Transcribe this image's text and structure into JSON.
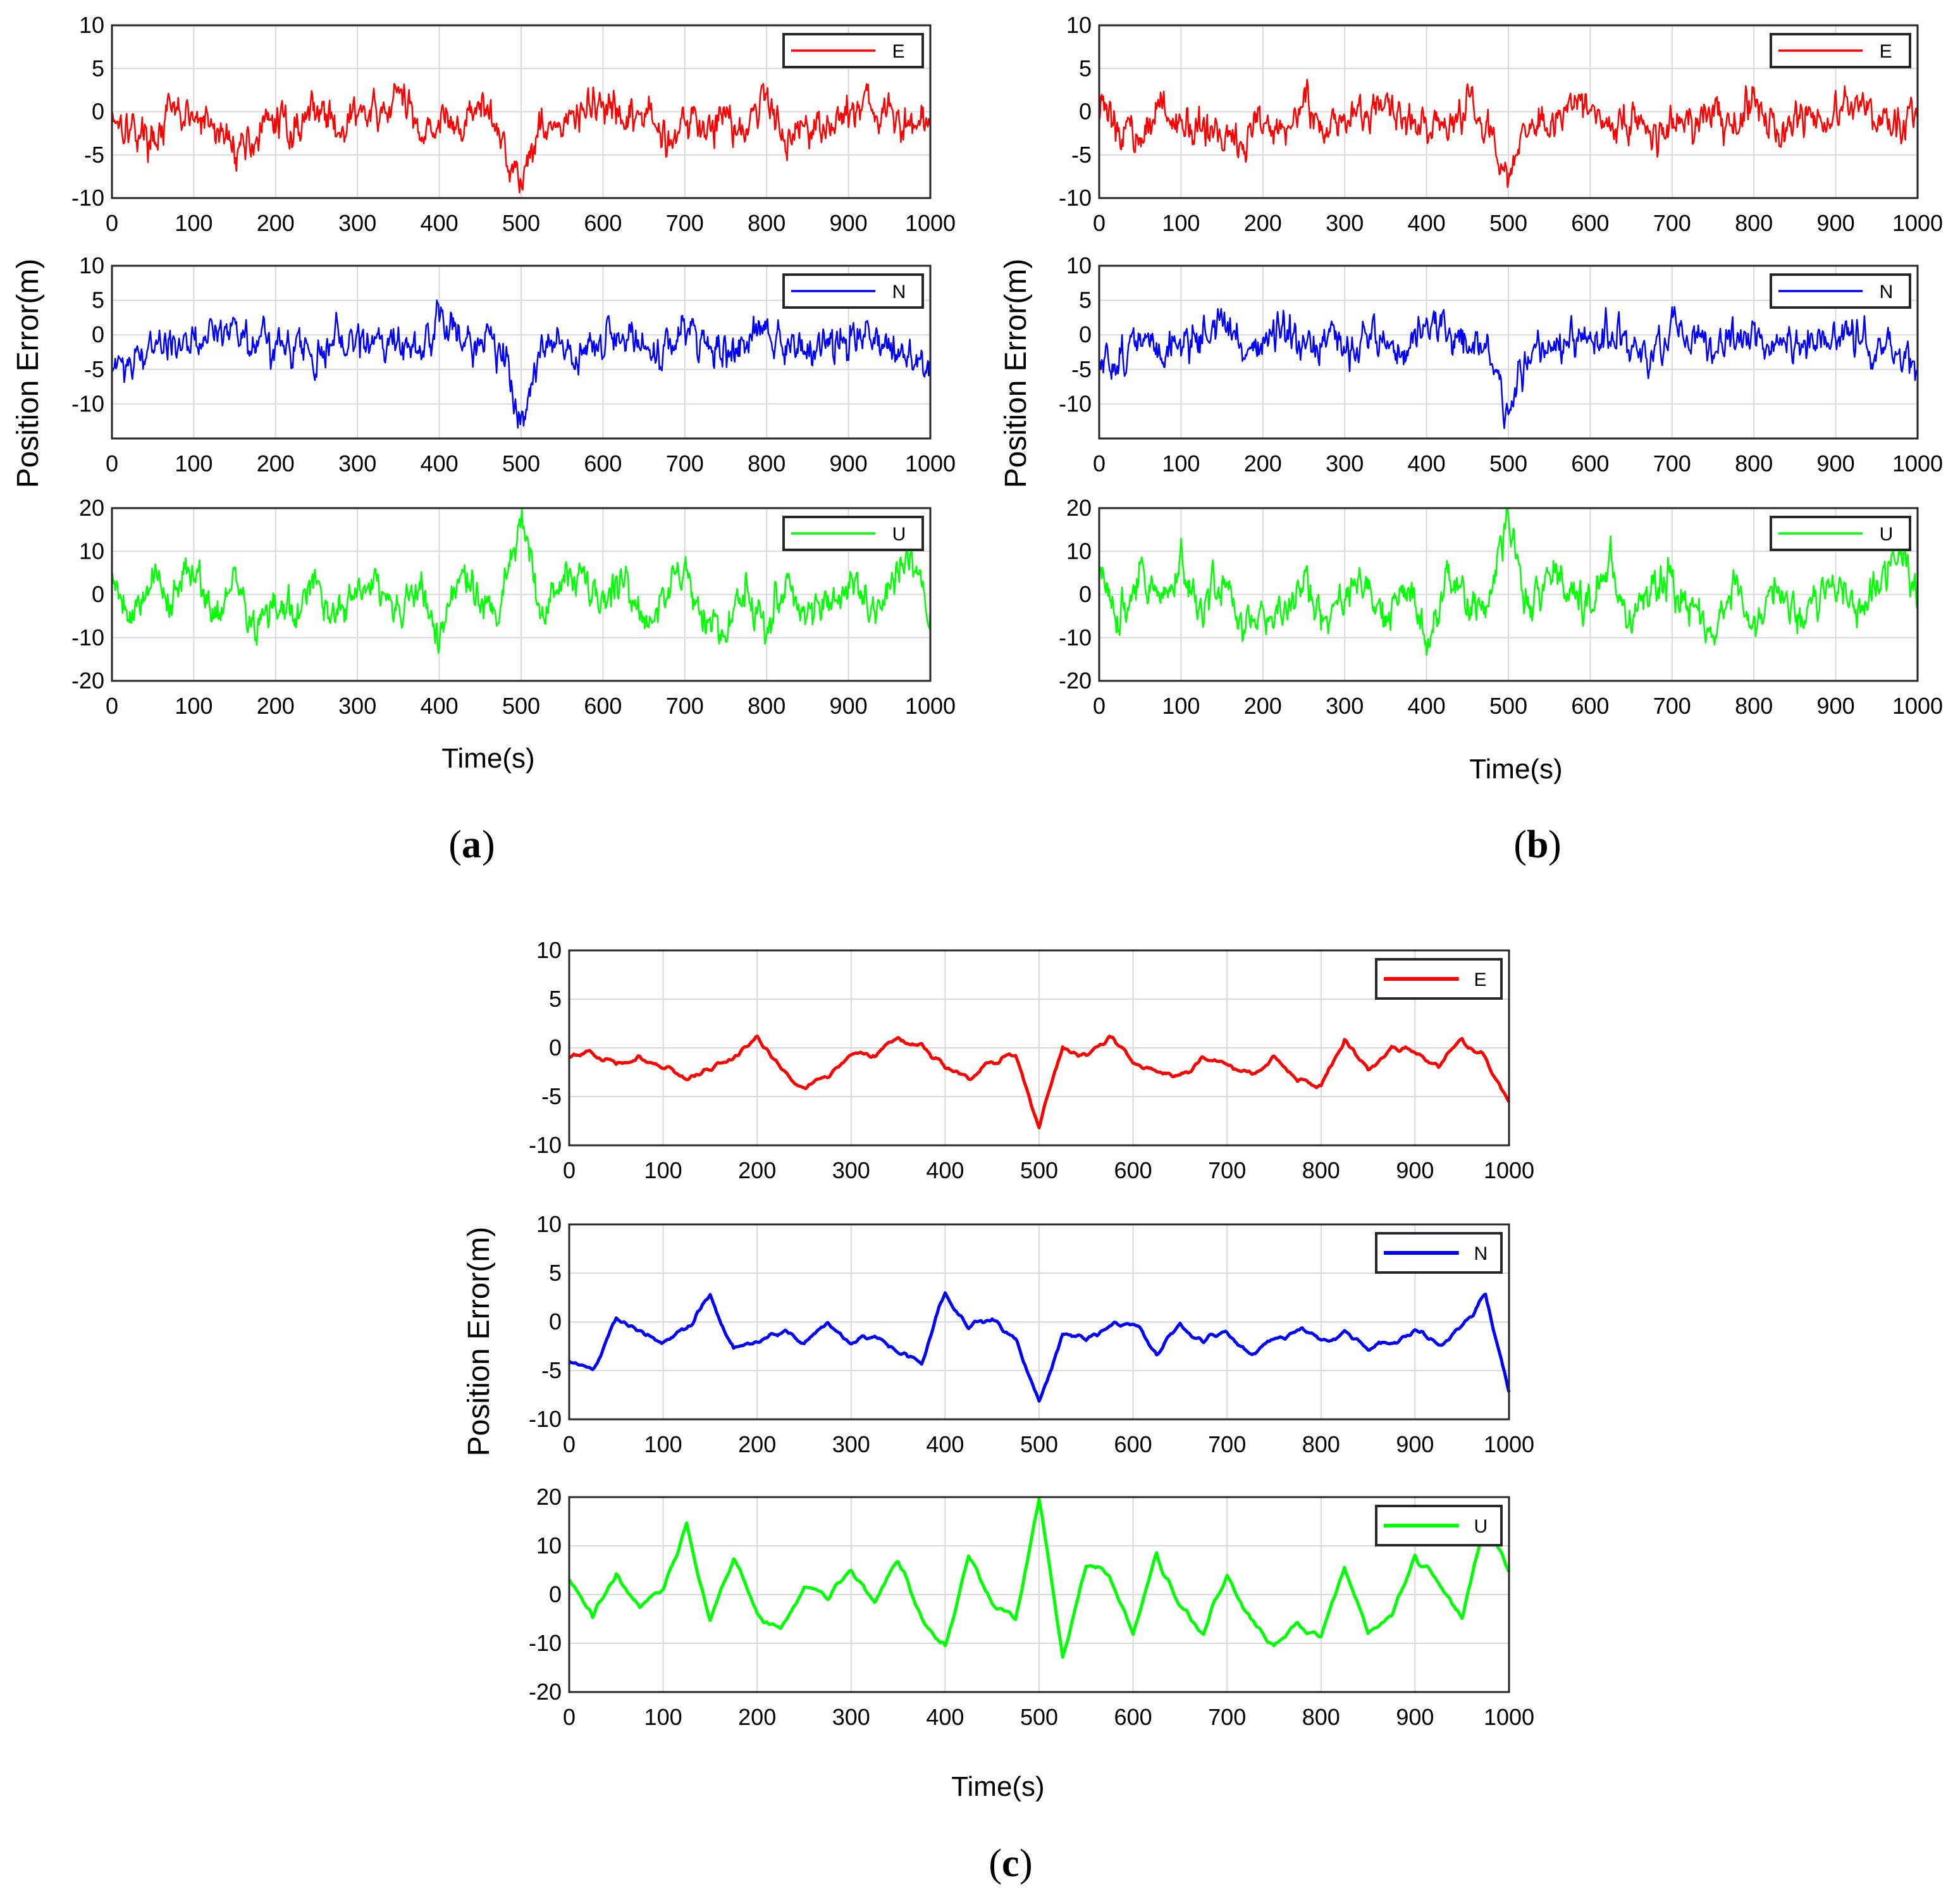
{
  "figure": {
    "panels": [
      {
        "caption_letter": "a",
        "ylabel": "Position Error(m)",
        "xlabel": "Time(s)",
        "subplots": [
          {
            "type": "line",
            "series_name": "E",
            "color": "#ff0000",
            "ylim": [
              -10,
              10
            ],
            "yticks": [
              -10,
              -5,
              0,
              5,
              10
            ],
            "xlim": [
              0,
              1000
            ],
            "xticks": [
              0,
              100,
              200,
              300,
              400,
              500,
              600,
              700,
              800,
              900,
              1000
            ]
          },
          {
            "type": "line",
            "series_name": "N",
            "color": "#0000ff",
            "ylim": [
              -15,
              10
            ],
            "yticks": [
              -10,
              -5,
              0,
              5,
              10
            ],
            "xlim": [
              0,
              1000
            ],
            "xticks": [
              0,
              100,
              200,
              300,
              400,
              500,
              600,
              700,
              800,
              900,
              1000
            ]
          },
          {
            "type": "line",
            "series_name": "U",
            "color": "#00ff00",
            "ylim": [
              -20,
              20
            ],
            "yticks": [
              -20,
              -10,
              0,
              10,
              20
            ],
            "xlim": [
              0,
              1000
            ],
            "xticks": [
              0,
              100,
              200,
              300,
              400,
              500,
              600,
              700,
              800,
              900,
              1000
            ]
          }
        ]
      },
      {
        "caption_letter": "b",
        "ylabel": "Position Error(m)",
        "xlabel": "Time(s)",
        "subplots": [
          {
            "type": "line",
            "series_name": "E",
            "color": "#ff0000",
            "ylim": [
              -10,
              10
            ],
            "yticks": [
              -10,
              -5,
              0,
              5,
              10
            ],
            "xlim": [
              0,
              1000
            ],
            "xticks": [
              0,
              100,
              200,
              300,
              400,
              500,
              600,
              700,
              800,
              900,
              1000
            ]
          },
          {
            "type": "line",
            "series_name": "N",
            "color": "#0000ff",
            "ylim": [
              -15,
              10
            ],
            "yticks": [
              -10,
              -5,
              0,
              5,
              10
            ],
            "xlim": [
              0,
              1000
            ],
            "xticks": [
              0,
              100,
              200,
              300,
              400,
              500,
              600,
              700,
              800,
              900,
              1000
            ]
          },
          {
            "type": "line",
            "series_name": "U",
            "color": "#00ff00",
            "ylim": [
              -20,
              20
            ],
            "yticks": [
              -20,
              -10,
              0,
              10,
              20
            ],
            "xlim": [
              0,
              1000
            ],
            "xticks": [
              0,
              100,
              200,
              300,
              400,
              500,
              600,
              700,
              800,
              900,
              1000
            ]
          }
        ]
      },
      {
        "caption_letter": "c",
        "ylabel": "Position Error(m)",
        "xlabel": "Time(s)",
        "subplots": [
          {
            "type": "line",
            "series_name": "E",
            "color": "#ff0000",
            "ylim": [
              -10,
              10
            ],
            "yticks": [
              -10,
              -5,
              0,
              5,
              10
            ],
            "xlim": [
              0,
              1000
            ],
            "xticks": [
              0,
              100,
              200,
              300,
              400,
              500,
              600,
              700,
              800,
              900,
              1000
            ]
          },
          {
            "type": "line",
            "series_name": "N",
            "color": "#0000ff",
            "ylim": [
              -10,
              10
            ],
            "yticks": [
              -10,
              -5,
              0,
              5,
              10
            ],
            "xlim": [
              0,
              1000
            ],
            "xticks": [
              0,
              100,
              200,
              300,
              400,
              500,
              600,
              700,
              800,
              900,
              1000
            ]
          },
          {
            "type": "line",
            "series_name": "U",
            "color": "#00ff00",
            "ylim": [
              -20,
              20
            ],
            "yticks": [
              -20,
              -10,
              0,
              10,
              20
            ],
            "xlim": [
              0,
              1000
            ],
            "xticks": [
              0,
              100,
              200,
              300,
              400,
              500,
              600,
              700,
              800,
              900,
              1000
            ]
          }
        ]
      }
    ]
  },
  "chart_data": [
    {
      "type": "line",
      "panel": "a",
      "title": "",
      "xlabel": "Time(s)",
      "ylabel": "Position Error(m)",
      "x": [
        0,
        25,
        50,
        75,
        100,
        125,
        150,
        175,
        200,
        225,
        250,
        275,
        300,
        325,
        350,
        375,
        400,
        425,
        450,
        475,
        500,
        525,
        550,
        575,
        600,
        625,
        650,
        675,
        700,
        725,
        750,
        775,
        800,
        825,
        850,
        875,
        900,
        925,
        950,
        975,
        1000
      ],
      "series": [
        {
          "name": "E",
          "values": [
            0,
            -2,
            -3,
            0,
            -1,
            -2,
            -4,
            -3,
            -1,
            -2,
            1,
            -2,
            0,
            -1,
            2,
            -2,
            -1,
            -2,
            1,
            -3,
            -8,
            -1,
            -2,
            0,
            1,
            -2,
            0,
            -3,
            -1,
            -2,
            0,
            -2,
            2,
            -3,
            -1,
            -2,
            0,
            1,
            -1,
            -2,
            -1
          ]
        },
        {
          "name": "N",
          "values": [
            -5,
            -3,
            -1,
            -2,
            -1,
            0,
            2,
            -2,
            -1,
            0,
            -3,
            -1,
            -2,
            0,
            -1,
            -3,
            2,
            0,
            -1,
            -2,
            -12,
            -2,
            -1,
            -2,
            -1,
            0,
            -2,
            -3,
            0,
            -1,
            -2,
            -1,
            1,
            -2,
            -1,
            -2,
            -1,
            0,
            -1,
            -3,
            -6
          ]
        },
        {
          "name": "U",
          "values": [
            5,
            -5,
            5,
            -2,
            8,
            -5,
            3,
            -8,
            -3,
            -5,
            2,
            -5,
            0,
            3,
            -6,
            2,
            -10,
            5,
            -2,
            -4,
            18,
            -5,
            5,
            3,
            -2,
            6,
            -8,
            2,
            5,
            -5,
            -10,
            3,
            -8,
            4,
            -5,
            -2,
            3,
            -4,
            1,
            10,
            -3
          ]
        }
      ]
    },
    {
      "type": "line",
      "panel": "b",
      "title": "",
      "xlabel": "Time(s)",
      "ylabel": "Position Error(m)",
      "x": [
        0,
        25,
        50,
        75,
        100,
        125,
        150,
        175,
        200,
        225,
        250,
        275,
        300,
        325,
        350,
        375,
        400,
        425,
        450,
        475,
        500,
        525,
        550,
        575,
        600,
        625,
        650,
        675,
        700,
        725,
        750,
        775,
        800,
        825,
        850,
        875,
        900,
        925,
        950,
        975,
        1000
      ],
      "series": [
        {
          "name": "E",
          "values": [
            0,
            -2,
            -3,
            0,
            -1,
            -2,
            -4,
            -3,
            -1,
            -2,
            1,
            -2,
            0,
            -1,
            2,
            -2,
            -1,
            -2,
            1,
            -3,
            -8,
            -1,
            -2,
            0,
            1,
            -2,
            0,
            -3,
            -1,
            -2,
            0,
            -2,
            2,
            -3,
            -1,
            -2,
            0,
            1,
            -1,
            -2,
            -1
          ]
        },
        {
          "name": "N",
          "values": [
            -5,
            -3,
            -1,
            -2,
            -1,
            0,
            2,
            -2,
            -1,
            0,
            -3,
            -1,
            -2,
            0,
            -1,
            -3,
            2,
            0,
            -1,
            -2,
            -12,
            -2,
            -1,
            -2,
            -1,
            0,
            -2,
            -3,
            0,
            -1,
            -2,
            -1,
            1,
            -2,
            -1,
            -2,
            -1,
            0,
            -1,
            -3,
            -6
          ]
        },
        {
          "name": "U",
          "values": [
            5,
            -5,
            5,
            -2,
            8,
            -5,
            3,
            -8,
            -3,
            -5,
            2,
            -5,
            0,
            3,
            -6,
            2,
            -10,
            5,
            -2,
            -4,
            18,
            -5,
            5,
            3,
            -2,
            6,
            -8,
            2,
            5,
            -5,
            -10,
            3,
            -8,
            4,
            -5,
            -2,
            3,
            -4,
            1,
            10,
            -3
          ]
        }
      ]
    },
    {
      "type": "line",
      "panel": "c",
      "title": "",
      "xlabel": "Time(s)",
      "ylabel": "Position Error(m)",
      "x": [
        0,
        25,
        50,
        75,
        100,
        125,
        150,
        175,
        200,
        225,
        250,
        275,
        300,
        325,
        350,
        375,
        400,
        425,
        450,
        475,
        500,
        525,
        550,
        575,
        600,
        625,
        650,
        675,
        700,
        725,
        750,
        775,
        800,
        825,
        850,
        875,
        900,
        925,
        950,
        975,
        1000
      ],
      "series": [
        {
          "name": "E",
          "values": [
            -1,
            0,
            -2,
            -1,
            -2,
            -3,
            -2,
            -1,
            1,
            -2,
            -4,
            -3,
            0,
            -1,
            1,
            0,
            -2,
            -3,
            -1,
            -1,
            -8,
            0,
            -1,
            1,
            -1,
            -2,
            -3,
            -1,
            -2,
            -2,
            -1,
            -3,
            -4,
            1,
            -2,
            0,
            0,
            -2,
            1,
            -1,
            -5
          ]
        },
        {
          "name": "N",
          "values": [
            -4,
            -5,
            0,
            -1,
            -2,
            -1,
            3,
            -3,
            -2,
            -1,
            -2,
            0,
            -2,
            -1,
            -3,
            -4,
            3,
            -1,
            0,
            -2,
            -8,
            -1,
            -2,
            -1,
            0,
            -3,
            0,
            -2,
            -1,
            -3,
            -2,
            -1,
            -2,
            -1,
            -3,
            -2,
            -1,
            -2,
            -1,
            3,
            -7
          ]
        },
        {
          "name": "U",
          "values": [
            3,
            -5,
            5,
            -3,
            2,
            14,
            -5,
            8,
            -3,
            -7,
            2,
            -1,
            5,
            -2,
            7,
            -5,
            -10,
            8,
            -2,
            -5,
            20,
            -12,
            6,
            4,
            -8,
            8,
            -3,
            -8,
            5,
            -5,
            -10,
            -5,
            -8,
            5,
            -8,
            -5,
            8,
            2,
            -5,
            15,
            5
          ]
        }
      ]
    }
  ]
}
